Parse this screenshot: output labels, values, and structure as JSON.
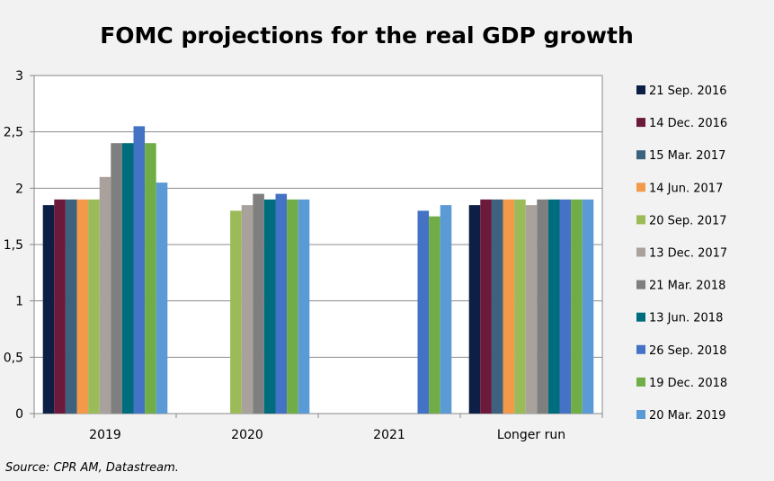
{
  "chart_data": {
    "type": "bar",
    "title": "FOMC projections for the real GDP growth",
    "source": "Source: CPR AM, Datastream.",
    "categories": [
      "2019",
      "2020",
      "2021",
      "Longer run"
    ],
    "ylim": [
      0,
      3
    ],
    "yticks": [
      0,
      0.5,
      1,
      1.5,
      2,
      2.5,
      3
    ],
    "ytick_labels": [
      "0",
      "0,5",
      "1",
      "1,5",
      "2",
      "2,5",
      "3"
    ],
    "grid": true,
    "legend_position": "right",
    "series": [
      {
        "name": "21 Sep. 2016",
        "color": "#0d1f44",
        "values": [
          1.85,
          null,
          null,
          1.85
        ]
      },
      {
        "name": "14 Dec. 2016",
        "color": "#6b1a3c",
        "values": [
          1.9,
          null,
          null,
          1.9
        ]
      },
      {
        "name": "15 Mar. 2017",
        "color": "#3c627f",
        "values": [
          1.9,
          null,
          null,
          1.9
        ]
      },
      {
        "name": "14 Jun. 2017",
        "color": "#f39a4a",
        "values": [
          1.9,
          null,
          null,
          1.9
        ]
      },
      {
        "name": "20 Sep. 2017",
        "color": "#9bbb59",
        "values": [
          1.9,
          1.8,
          null,
          1.9
        ]
      },
      {
        "name": "13 Dec. 2017",
        "color": "#a9a29c",
        "values": [
          2.1,
          1.85,
          null,
          1.85
        ]
      },
      {
        "name": "21 Mar. 2018",
        "color": "#7f7f7f",
        "values": [
          2.4,
          1.95,
          null,
          1.9
        ]
      },
      {
        "name": "13 Jun. 2018",
        "color": "#006d7e",
        "values": [
          2.4,
          1.9,
          null,
          1.9
        ]
      },
      {
        "name": "26 Sep. 2018",
        "color": "#4472c4",
        "values": [
          2.55,
          1.95,
          1.8,
          1.9
        ]
      },
      {
        "name": "19 Dec. 2018",
        "color": "#70ad47",
        "values": [
          2.4,
          1.9,
          1.75,
          1.9
        ]
      },
      {
        "name": "20 Mar. 2019",
        "color": "#5b9bd5",
        "values": [
          2.05,
          1.9,
          1.85,
          1.9
        ]
      }
    ]
  }
}
